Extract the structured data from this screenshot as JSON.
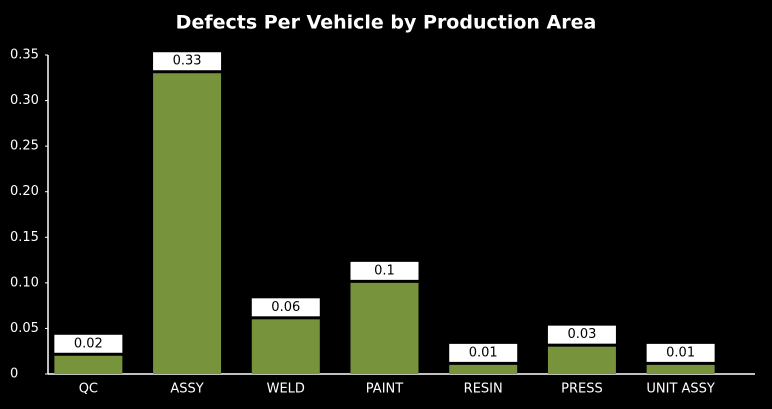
{
  "chart_data": {
    "type": "bar",
    "title": "Defects Per Vehicle by Production Area",
    "categories": [
      "QC",
      "ASSY",
      "WELD",
      "PAINT",
      "RESIN",
      "PRESS",
      "UNIT ASSY"
    ],
    "values": [
      0.02,
      0.33,
      0.06,
      0.1,
      0.01,
      0.03,
      0.01
    ],
    "color": "#77933c",
    "ylim": [
      0,
      0.35
    ],
    "yticks": [
      0,
      0.05,
      {
        "value": 0.1,
        "label": "0.10"
      },
      0.15,
      {
        "value": 0.2,
        "label": "0.20"
      },
      0.25,
      {
        "value": 0.3,
        "label": "0.30"
      },
      0.35
    ],
    "grid": false
  }
}
